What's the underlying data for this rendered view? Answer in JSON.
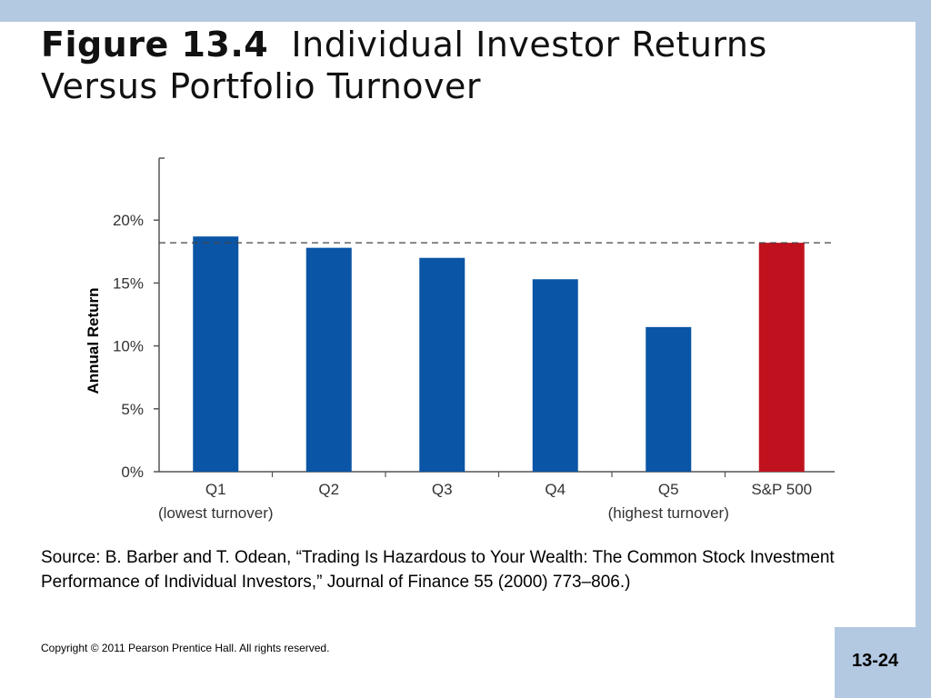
{
  "title": {
    "figure_label": "Figure 13.4",
    "text_line1": "Individual Investor Returns",
    "text_line2": "Versus Portfolio Turnover"
  },
  "chart_data": {
    "type": "bar",
    "ylabel": "Annual Return",
    "ylim": [
      0,
      25
    ],
    "yticks": [
      0,
      5,
      10,
      15,
      20
    ],
    "ytick_labels": [
      "0%",
      "5%",
      "10%",
      "15%",
      "20%"
    ],
    "categories": [
      "Q1",
      "Q2",
      "Q3",
      "Q4",
      "Q5",
      "S&P 500"
    ],
    "category_sublabels": [
      "(lowest turnover)",
      "",
      "",
      "",
      "(highest turnover)",
      ""
    ],
    "values": [
      18.7,
      17.8,
      17.0,
      15.3,
      11.5,
      18.2
    ],
    "reference_line": 18.2,
    "colors": [
      "#0a55a5",
      "#0a55a5",
      "#0a55a5",
      "#0a55a5",
      "#0a55a5",
      "#c0121e"
    ],
    "grid": false
  },
  "source_text": "Source: B. Barber and T. Odean, “Trading Is Hazardous to Your Wealth: The Common Stock Investment Performance of Individual Investors,” Journal of Finance 55 (2000) 773–806.)",
  "copyright": "Copyright © 2011 Pearson Prentice Hall. All rights reserved.",
  "page_number": "13-24"
}
